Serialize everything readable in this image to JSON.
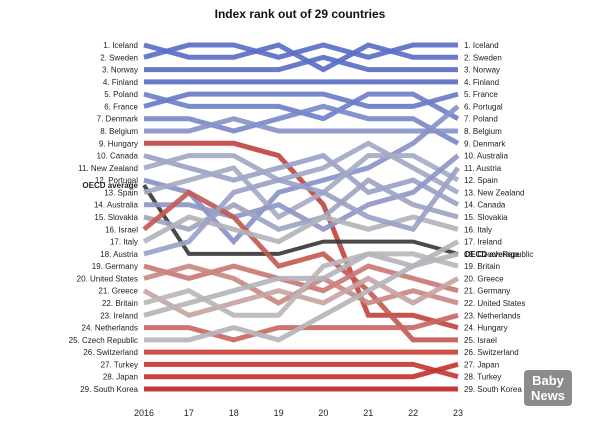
{
  "chart_data": {
    "type": "line",
    "title": "Index rank out of 29 countries",
    "x": [
      "2016",
      "17",
      "18",
      "19",
      "20",
      "21",
      "22",
      "23"
    ],
    "ylim": [
      1,
      29
    ],
    "legend": "none",
    "grid": false,
    "left_labels": [
      "1. Iceland",
      "2. Sweden",
      "3. Norway",
      "4. Finland",
      "5. Poland",
      "6. France",
      "7. Denmark",
      "8. Belgium",
      "9. Hungary",
      "10. Canada",
      "11. New Zealand",
      "12. Portugal",
      "OECD average",
      "13. Spain",
      "14. Australia",
      "15. Slovakia",
      "16. Israel",
      "17. Italy",
      "18. Austria",
      "19. Germany",
      "20. United States",
      "21. Greece",
      "22. Britain",
      "23. Ireland",
      "24. Netherlands",
      "25. Czech Republic",
      "26. Switzerland",
      "27. Turkey",
      "28. Japan",
      "29. South Korea"
    ],
    "right_labels": [
      "1. Iceland",
      "2. Sweden",
      "3. Norway",
      "4. Finland",
      "5. France",
      "6. Portugal",
      "7. Poland",
      "8. Belgium",
      "9. Denmark",
      "10. Australia",
      "11. Austria",
      "12. Spain",
      "13. New Zealand",
      "14. Canada",
      "15. Slovakia",
      "16. Italy",
      "17. Ireland",
      "18. Czech Republic",
      "OECD average",
      "19. Britain",
      "20. Greece",
      "21. Germany",
      "22. United States",
      "23. Netherlands",
      "24. Hungary",
      "25. Israel",
      "26. Switzerland",
      "27. Japan",
      "28. Turkey",
      "29. South Korea"
    ],
    "series": [
      {
        "name": "Iceland",
        "values": [
          2,
          1,
          1,
          2,
          1,
          2,
          1,
          1
        ],
        "color": "#5b6fc4"
      },
      {
        "name": "Sweden",
        "values": [
          1,
          2,
          2,
          1,
          3,
          1,
          2,
          2
        ],
        "color": "#5b6fc4"
      },
      {
        "name": "Norway",
        "values": [
          3,
          3,
          3,
          3,
          2,
          3,
          3,
          3
        ],
        "color": "#5b6fc4"
      },
      {
        "name": "Finland",
        "values": [
          4,
          4,
          4,
          4,
          4,
          4,
          4,
          4
        ],
        "color": "#5b6fc4"
      },
      {
        "name": "Poland",
        "values": [
          5,
          6,
          6,
          6,
          7,
          5,
          5,
          7
        ],
        "color": "#6f80c9"
      },
      {
        "name": "France",
        "values": [
          6,
          5,
          5,
          5,
          5,
          6,
          6,
          5
        ],
        "color": "#6b7cc8"
      },
      {
        "name": "Denmark",
        "values": [
          7,
          7,
          8,
          7,
          6,
          7,
          7,
          9
        ],
        "color": "#7a89c9"
      },
      {
        "name": "Belgium",
        "values": [
          8,
          8,
          7,
          8,
          8,
          8,
          8,
          8
        ],
        "color": "#8994c8"
      },
      {
        "name": "Hungary",
        "values": [
          9,
          9,
          9,
          10,
          14,
          23,
          23,
          24
        ],
        "color": "#c0463f"
      },
      {
        "name": "Canada",
        "values": [
          10,
          11,
          12,
          11,
          10,
          13,
          12,
          14
        ],
        "color": "#9aa2c6"
      },
      {
        "name": "New Zealand",
        "values": [
          11,
          10,
          10,
          12,
          11,
          9,
          11,
          13
        ],
        "color": "#a3a9c4"
      },
      {
        "name": "Portugal",
        "values": [
          12,
          13,
          17,
          13,
          12,
          11,
          9,
          6
        ],
        "color": "#8a93c7"
      },
      {
        "name": "OECD average",
        "values": [
          12.4,
          18,
          18,
          18,
          17,
          17,
          17,
          18
        ],
        "color": "#3a3a3a"
      },
      {
        "name": "Spain",
        "values": [
          13,
          12,
          11,
          15,
          13,
          10,
          10,
          12
        ],
        "color": "#a5abc6"
      },
      {
        "name": "Australia",
        "values": [
          14,
          14,
          15,
          14,
          16,
          14,
          13,
          10
        ],
        "color": "#8f98c6"
      },
      {
        "name": "Slovakia",
        "values": [
          15,
          16,
          14,
          16,
          15,
          12,
          14,
          15
        ],
        "color": "#9ea4c3"
      },
      {
        "name": "Israel",
        "values": [
          16,
          13,
          15,
          19,
          18,
          21,
          25,
          25
        ],
        "color": "#c45a55"
      },
      {
        "name": "Italy",
        "values": [
          17,
          15,
          16,
          17,
          15,
          16,
          15,
          16
        ],
        "color": "#b3b3bc"
      },
      {
        "name": "Austria",
        "values": [
          18,
          17,
          13,
          12,
          13,
          15,
          16,
          11
        ],
        "color": "#9ba2c5"
      },
      {
        "name": "Germany",
        "values": [
          19,
          20,
          19,
          20,
          21,
          19,
          20,
          21
        ],
        "color": "#c97a76"
      },
      {
        "name": "United States",
        "values": [
          20,
          19,
          20,
          22,
          20,
          22,
          21,
          22
        ],
        "color": "#c98884"
      },
      {
        "name": "Greece",
        "values": [
          21,
          23,
          22,
          21,
          22,
          20,
          22,
          20
        ],
        "color": "#c7a5a3"
      },
      {
        "name": "Britain",
        "values": [
          22,
          21,
          23,
          23,
          19,
          18,
          18,
          19
        ],
        "color": "#bcb6b8"
      },
      {
        "name": "Ireland",
        "values": [
          23,
          22,
          21,
          20,
          20,
          18,
          19,
          17
        ],
        "color": "#b4b4bc"
      },
      {
        "name": "Netherlands",
        "values": [
          24,
          24,
          25,
          24,
          24,
          24,
          24,
          23
        ],
        "color": "#c96865"
      },
      {
        "name": "Czech Republic",
        "values": [
          25,
          25,
          24,
          25,
          23,
          21,
          19,
          18
        ],
        "color": "#b7b4ba"
      },
      {
        "name": "Switzerland",
        "values": [
          26,
          26,
          26,
          26,
          26,
          26,
          26,
          26
        ],
        "color": "#c8423a"
      },
      {
        "name": "Turkey",
        "values": [
          27,
          27,
          27,
          27,
          27,
          27,
          27,
          28
        ],
        "color": "#c63a33"
      },
      {
        "name": "Japan",
        "values": [
          28,
          28,
          28,
          28,
          28,
          28,
          28,
          27
        ],
        "color": "#c43530"
      },
      {
        "name": "South Korea",
        "values": [
          29,
          29,
          29,
          29,
          29,
          29,
          29,
          29
        ],
        "color": "#be2b26"
      }
    ]
  },
  "badge": {
    "line1": "Baby",
    "line2": "News"
  }
}
